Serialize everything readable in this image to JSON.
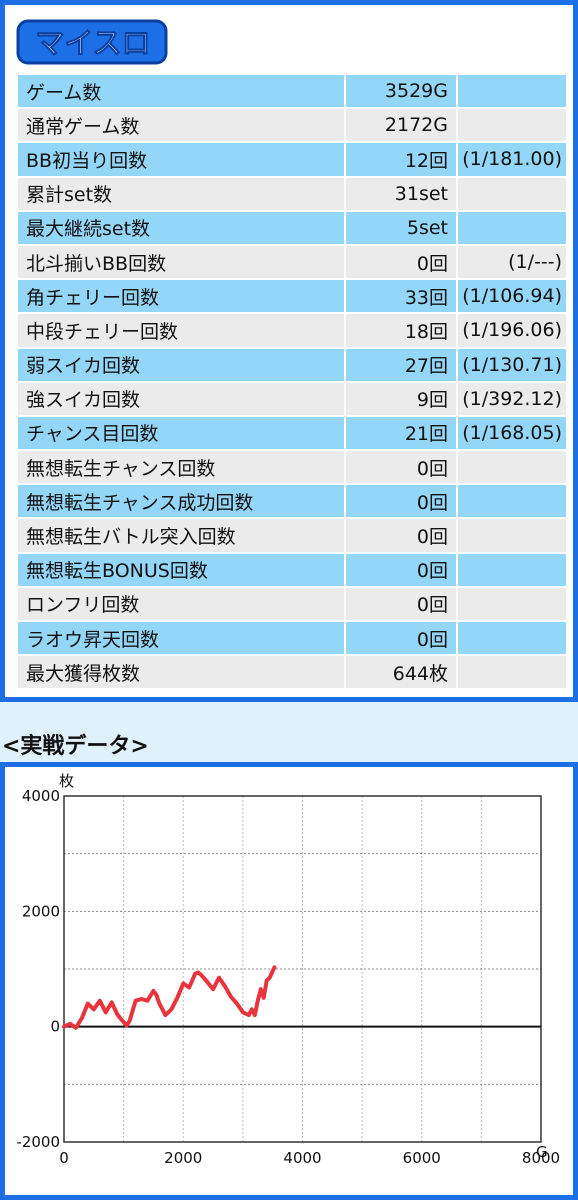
{
  "logo": {
    "text": "マイスロ"
  },
  "stats": [
    {
      "label": "ゲーム数",
      "value": "3529G",
      "ratio": ""
    },
    {
      "label": "通常ゲーム数",
      "value": "2172G",
      "ratio": ""
    },
    {
      "label": "BB初当り回数",
      "value": "12回",
      "ratio": "(1/181.00)"
    },
    {
      "label": "累計set数",
      "value": "31set",
      "ratio": ""
    },
    {
      "label": "最大継続set数",
      "value": "5set",
      "ratio": ""
    },
    {
      "label": "北斗揃いBB回数",
      "value": "0回",
      "ratio": "(1/---)"
    },
    {
      "label": "角チェリー回数",
      "value": "33回",
      "ratio": "(1/106.94)"
    },
    {
      "label": "中段チェリー回数",
      "value": "18回",
      "ratio": "(1/196.06)"
    },
    {
      "label": "弱スイカ回数",
      "value": "27回",
      "ratio": "(1/130.71)"
    },
    {
      "label": "強スイカ回数",
      "value": "9回",
      "ratio": "(1/392.12)"
    },
    {
      "label": "チャンス目回数",
      "value": "21回",
      "ratio": "(1/168.05)"
    },
    {
      "label": "無想転生チャンス回数",
      "value": "0回",
      "ratio": ""
    },
    {
      "label": "無想転生チャンス成功回数",
      "value": "0回",
      "ratio": ""
    },
    {
      "label": "無想転生バトル突入回数",
      "value": "0回",
      "ratio": ""
    },
    {
      "label": "無想転生BONUS回数",
      "value": "0回",
      "ratio": ""
    },
    {
      "label": "ロンフリ回数",
      "value": "0回",
      "ratio": ""
    },
    {
      "label": "ラオウ昇天回数",
      "value": "0回",
      "ratio": ""
    },
    {
      "label": "最大獲得枚数",
      "value": "644枚",
      "ratio": ""
    }
  ],
  "section_title": "<実戦データ>",
  "chart_data": {
    "type": "line",
    "ylabel": "枚",
    "xlabel": "G",
    "xlim": [
      0,
      8000
    ],
    "ylim": [
      -2000,
      4000
    ],
    "xticks": [
      0,
      2000,
      4000,
      6000,
      8000
    ],
    "yticks": [
      -2000,
      0,
      2000,
      4000
    ],
    "grid": true,
    "series": [
      {
        "color": "#e8343c",
        "x": [
          0,
          100,
          200,
          300,
          400,
          500,
          600,
          700,
          800,
          900,
          1000,
          1050,
          1100,
          1200,
          1300,
          1400,
          1500,
          1550,
          1600,
          1700,
          1800,
          1900,
          2000,
          2100,
          2200,
          2250,
          2300,
          2400,
          2500,
          2600,
          2700,
          2800,
          2900,
          3000,
          3100,
          3150,
          3200,
          3250,
          3300,
          3350,
          3400,
          3450,
          3529
        ],
        "y": [
          0,
          50,
          -20,
          150,
          400,
          300,
          450,
          250,
          420,
          200,
          80,
          20,
          100,
          450,
          480,
          450,
          620,
          550,
          400,
          200,
          300,
          500,
          750,
          680,
          920,
          940,
          900,
          780,
          650,
          850,
          700,
          520,
          400,
          250,
          200,
          300,
          200,
          450,
          650,
          500,
          800,
          850,
          1030
        ]
      }
    ]
  }
}
